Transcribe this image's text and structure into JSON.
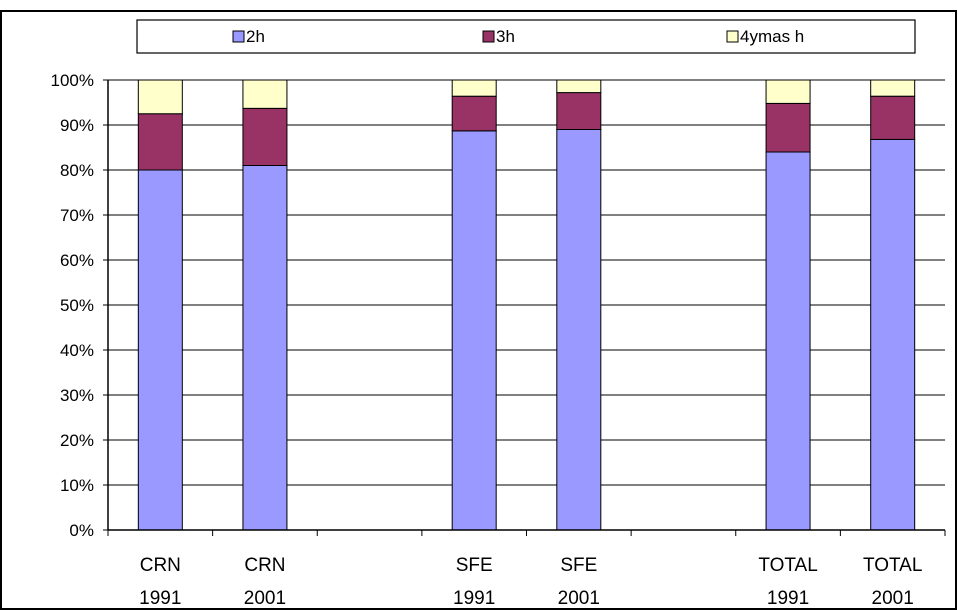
{
  "chart_data": {
    "type": "bar",
    "stacked": true,
    "percent": true,
    "categories": [
      [
        "CRN",
        "1991"
      ],
      [
        "CRN",
        "2001"
      ],
      [
        "",
        ""
      ],
      [
        "SFE",
        "1991"
      ],
      [
        "SFE",
        "2001"
      ],
      [
        "",
        ""
      ],
      [
        "TOTAL",
        "1991"
      ],
      [
        "TOTAL",
        "2001"
      ]
    ],
    "series": [
      {
        "name": "2h",
        "color": "#9999ff",
        "values": [
          80,
          81,
          null,
          88.7,
          89,
          null,
          84,
          86.8
        ]
      },
      {
        "name": "3h",
        "color": "#993366",
        "values": [
          12.5,
          12.7,
          null,
          7.7,
          8.2,
          null,
          10.8,
          9.6
        ]
      },
      {
        "name": "4ymas h",
        "color": "#ffffcc",
        "values": [
          7.5,
          6.3,
          null,
          3.6,
          2.8,
          null,
          5.2,
          3.6
        ]
      }
    ],
    "yticks": [
      "0%",
      "10%",
      "20%",
      "30%",
      "40%",
      "50%",
      "60%",
      "70%",
      "80%",
      "90%",
      "100%"
    ],
    "ylim": [
      0,
      100
    ],
    "grid": true,
    "legend": "top"
  }
}
